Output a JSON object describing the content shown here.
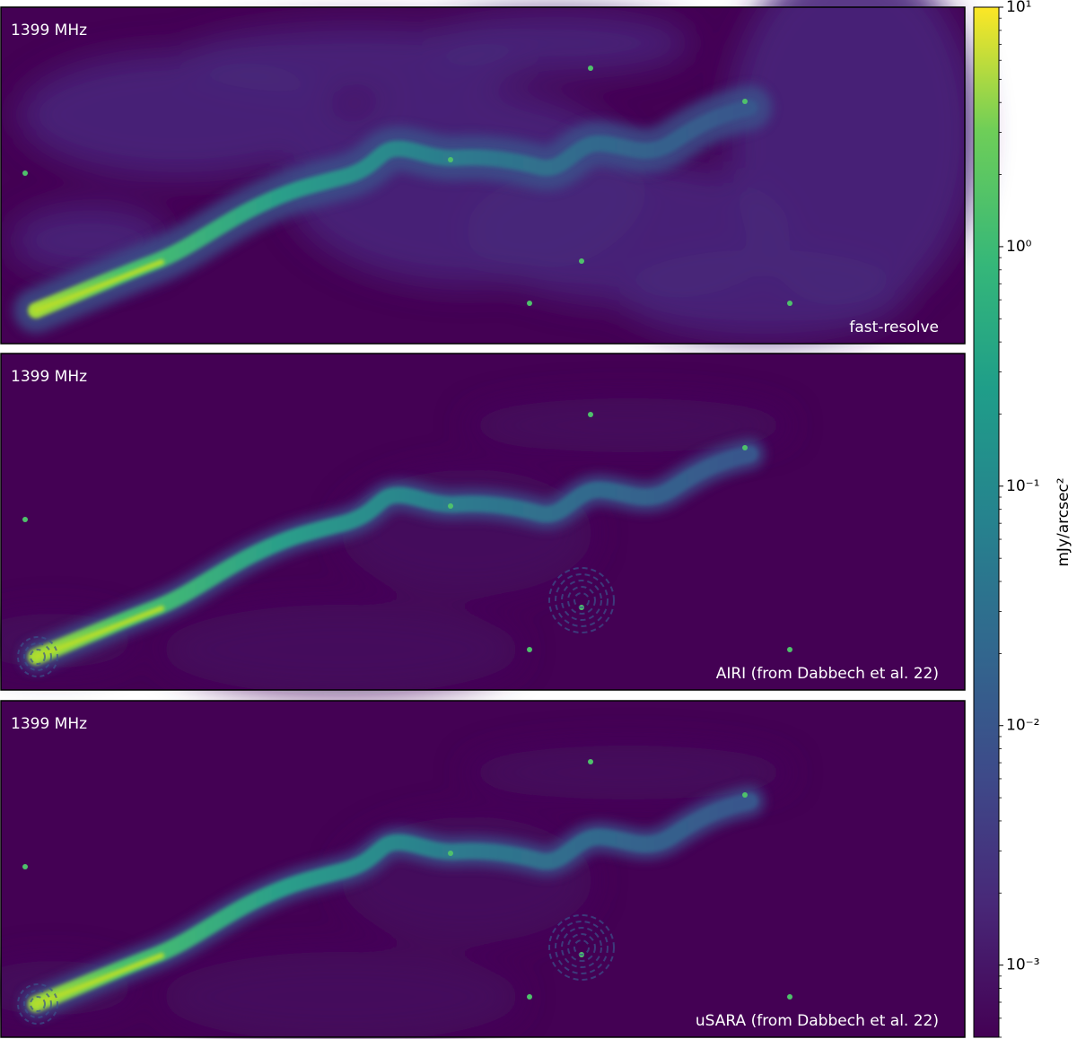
{
  "chart_data": {
    "type": "image",
    "panels": [
      {
        "frequency": "1399 MHz",
        "method": "fast-resolve"
      },
      {
        "frequency": "1399 MHz",
        "method": "AIRI (from Dabbech et al. 22)"
      },
      {
        "frequency": "1399 MHz",
        "method": "uSARA (from Dabbech et al. 22)"
      }
    ],
    "colorbar": {
      "label": "mJy/arcsec²",
      "scale": "log",
      "colormap": "viridis",
      "lim": [
        0.0005,
        10
      ],
      "ticks": [
        {
          "value": 0.001,
          "label": "10⁻³"
        },
        {
          "value": 0.01,
          "label": "10⁻²"
        },
        {
          "value": 0.1,
          "label": "10⁻¹"
        },
        {
          "value": 1,
          "label": "10⁰"
        },
        {
          "value": 10,
          "label": "10¹"
        }
      ]
    }
  }
}
